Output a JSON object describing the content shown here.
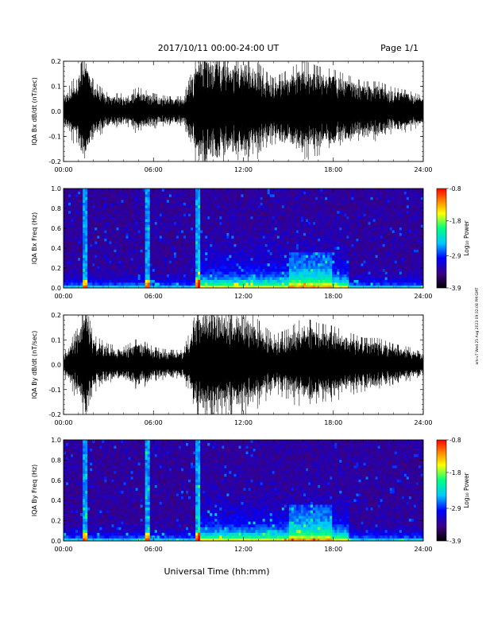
{
  "header": {
    "date_range": "2017/10/11   00:00-24:00 UT",
    "page": "Page 1/1"
  },
  "footer": {
    "x_axis_title": "Universal Time (hh:mm)",
    "side_stamp": "ark-v7 Wed 25 Aug 2023 09:32:08 PM GMT"
  },
  "chart_data": [
    {
      "type": "line",
      "ylabel": "IQA Bx dB/dt (nT/sec)",
      "ylim": [
        -0.2,
        0.2
      ],
      "y_ticks": [
        "0.2",
        "0.1",
        "0.0",
        "-0.1",
        "-0.2"
      ],
      "y_tick_values": [
        0.2,
        0.1,
        0.0,
        -0.1,
        -0.2
      ],
      "xlim": [
        "00:00",
        "24:00"
      ],
      "x_ticks": [
        "00:00",
        "06:00",
        "12:00",
        "18:00",
        "24:00"
      ],
      "series": [
        {
          "color": "#000000",
          "x_hours": [
            0,
            1,
            1.5,
            2,
            3,
            4,
            5,
            6,
            7,
            8,
            9,
            9.5,
            10,
            11,
            12,
            13,
            14,
            15,
            16,
            17,
            18,
            19,
            20,
            21,
            22,
            23,
            24
          ],
          "amplitude_envelope": [
            0.05,
            0.14,
            0.2,
            0.1,
            0.06,
            0.06,
            0.08,
            0.06,
            0.05,
            0.05,
            0.2,
            0.2,
            0.19,
            0.18,
            0.2,
            0.16,
            0.11,
            0.14,
            0.17,
            0.15,
            0.14,
            0.12,
            0.1,
            0.1,
            0.08,
            0.07,
            0.05
          ]
        }
      ]
    },
    {
      "type": "heatmap",
      "ylabel": "IQA Bx Freq (Hz)",
      "ylim": [
        0.0,
        1.0
      ],
      "y_ticks": [
        "1.0",
        "0.8",
        "0.6",
        "0.4",
        "0.2",
        "0.0"
      ],
      "y_tick_values": [
        1.0,
        0.8,
        0.6,
        0.4,
        0.2,
        0.0
      ],
      "xlim": [
        "00:00",
        "24:00"
      ],
      "x_ticks": [
        "00:00",
        "06:00",
        "12:00",
        "18:00",
        "24:00"
      ],
      "colorbar": {
        "label": "Log₁₀ Power",
        "ticks": [
          "-0.8",
          "-1.8",
          "-2.9",
          "-3.9"
        ],
        "range": [
          -3.9,
          -0.8
        ],
        "colormap": [
          "#000000",
          "#3b0080",
          "#0000ff",
          "#00c8ff",
          "#00ff80",
          "#ffff00",
          "#ff8000",
          "#ff0000"
        ]
      },
      "bright_bursts_hours": [
        1.4,
        5.6,
        9.0
      ],
      "high_activity_hours": [
        9,
        19
      ]
    },
    {
      "type": "line",
      "ylabel": "IQA By dB/dt (nT/sec)",
      "ylim": [
        -0.2,
        0.2
      ],
      "y_ticks": [
        "0.2",
        "0.1",
        "0.0",
        "-0.1",
        "-0.2"
      ],
      "y_tick_values": [
        0.2,
        0.1,
        0.0,
        -0.1,
        -0.2
      ],
      "xlim": [
        "00:00",
        "24:00"
      ],
      "x_ticks": [
        "00:00",
        "06:00",
        "12:00",
        "18:00",
        "24:00"
      ],
      "series": [
        {
          "color": "#000000",
          "x_hours": [
            0,
            1,
            1.5,
            2,
            3,
            4,
            5,
            6,
            7,
            8,
            9,
            9.5,
            10,
            11,
            12,
            13,
            14,
            15,
            16,
            17,
            18,
            19,
            20,
            21,
            22,
            23,
            24
          ],
          "amplitude_envelope": [
            0.04,
            0.13,
            0.2,
            0.1,
            0.07,
            0.06,
            0.09,
            0.06,
            0.05,
            0.05,
            0.2,
            0.2,
            0.2,
            0.19,
            0.2,
            0.15,
            0.1,
            0.12,
            0.16,
            0.14,
            0.13,
            0.11,
            0.09,
            0.09,
            0.07,
            0.06,
            0.04
          ]
        }
      ]
    },
    {
      "type": "heatmap",
      "ylabel": "IQA By Freq (Hz)",
      "ylim": [
        0.0,
        1.0
      ],
      "y_ticks": [
        "1.0",
        "0.8",
        "0.6",
        "0.4",
        "0.2",
        "0.0"
      ],
      "y_tick_values": [
        1.0,
        0.8,
        0.6,
        0.4,
        0.2,
        0.0
      ],
      "xlim": [
        "00:00",
        "24:00"
      ],
      "x_ticks": [
        "00:00",
        "06:00",
        "12:00",
        "18:00",
        "24:00"
      ],
      "colorbar": {
        "label": "Log₁₀ Power",
        "ticks": [
          "-0.8",
          "-1.8",
          "-2.9",
          "-3.9"
        ],
        "range": [
          -3.9,
          -0.8
        ],
        "colormap": [
          "#000000",
          "#3b0080",
          "#0000ff",
          "#00c8ff",
          "#00ff80",
          "#ffff00",
          "#ff8000",
          "#ff0000"
        ]
      },
      "bright_bursts_hours": [
        1.4,
        5.6,
        9.0
      ],
      "high_activity_hours": [
        9,
        19
      ]
    }
  ]
}
